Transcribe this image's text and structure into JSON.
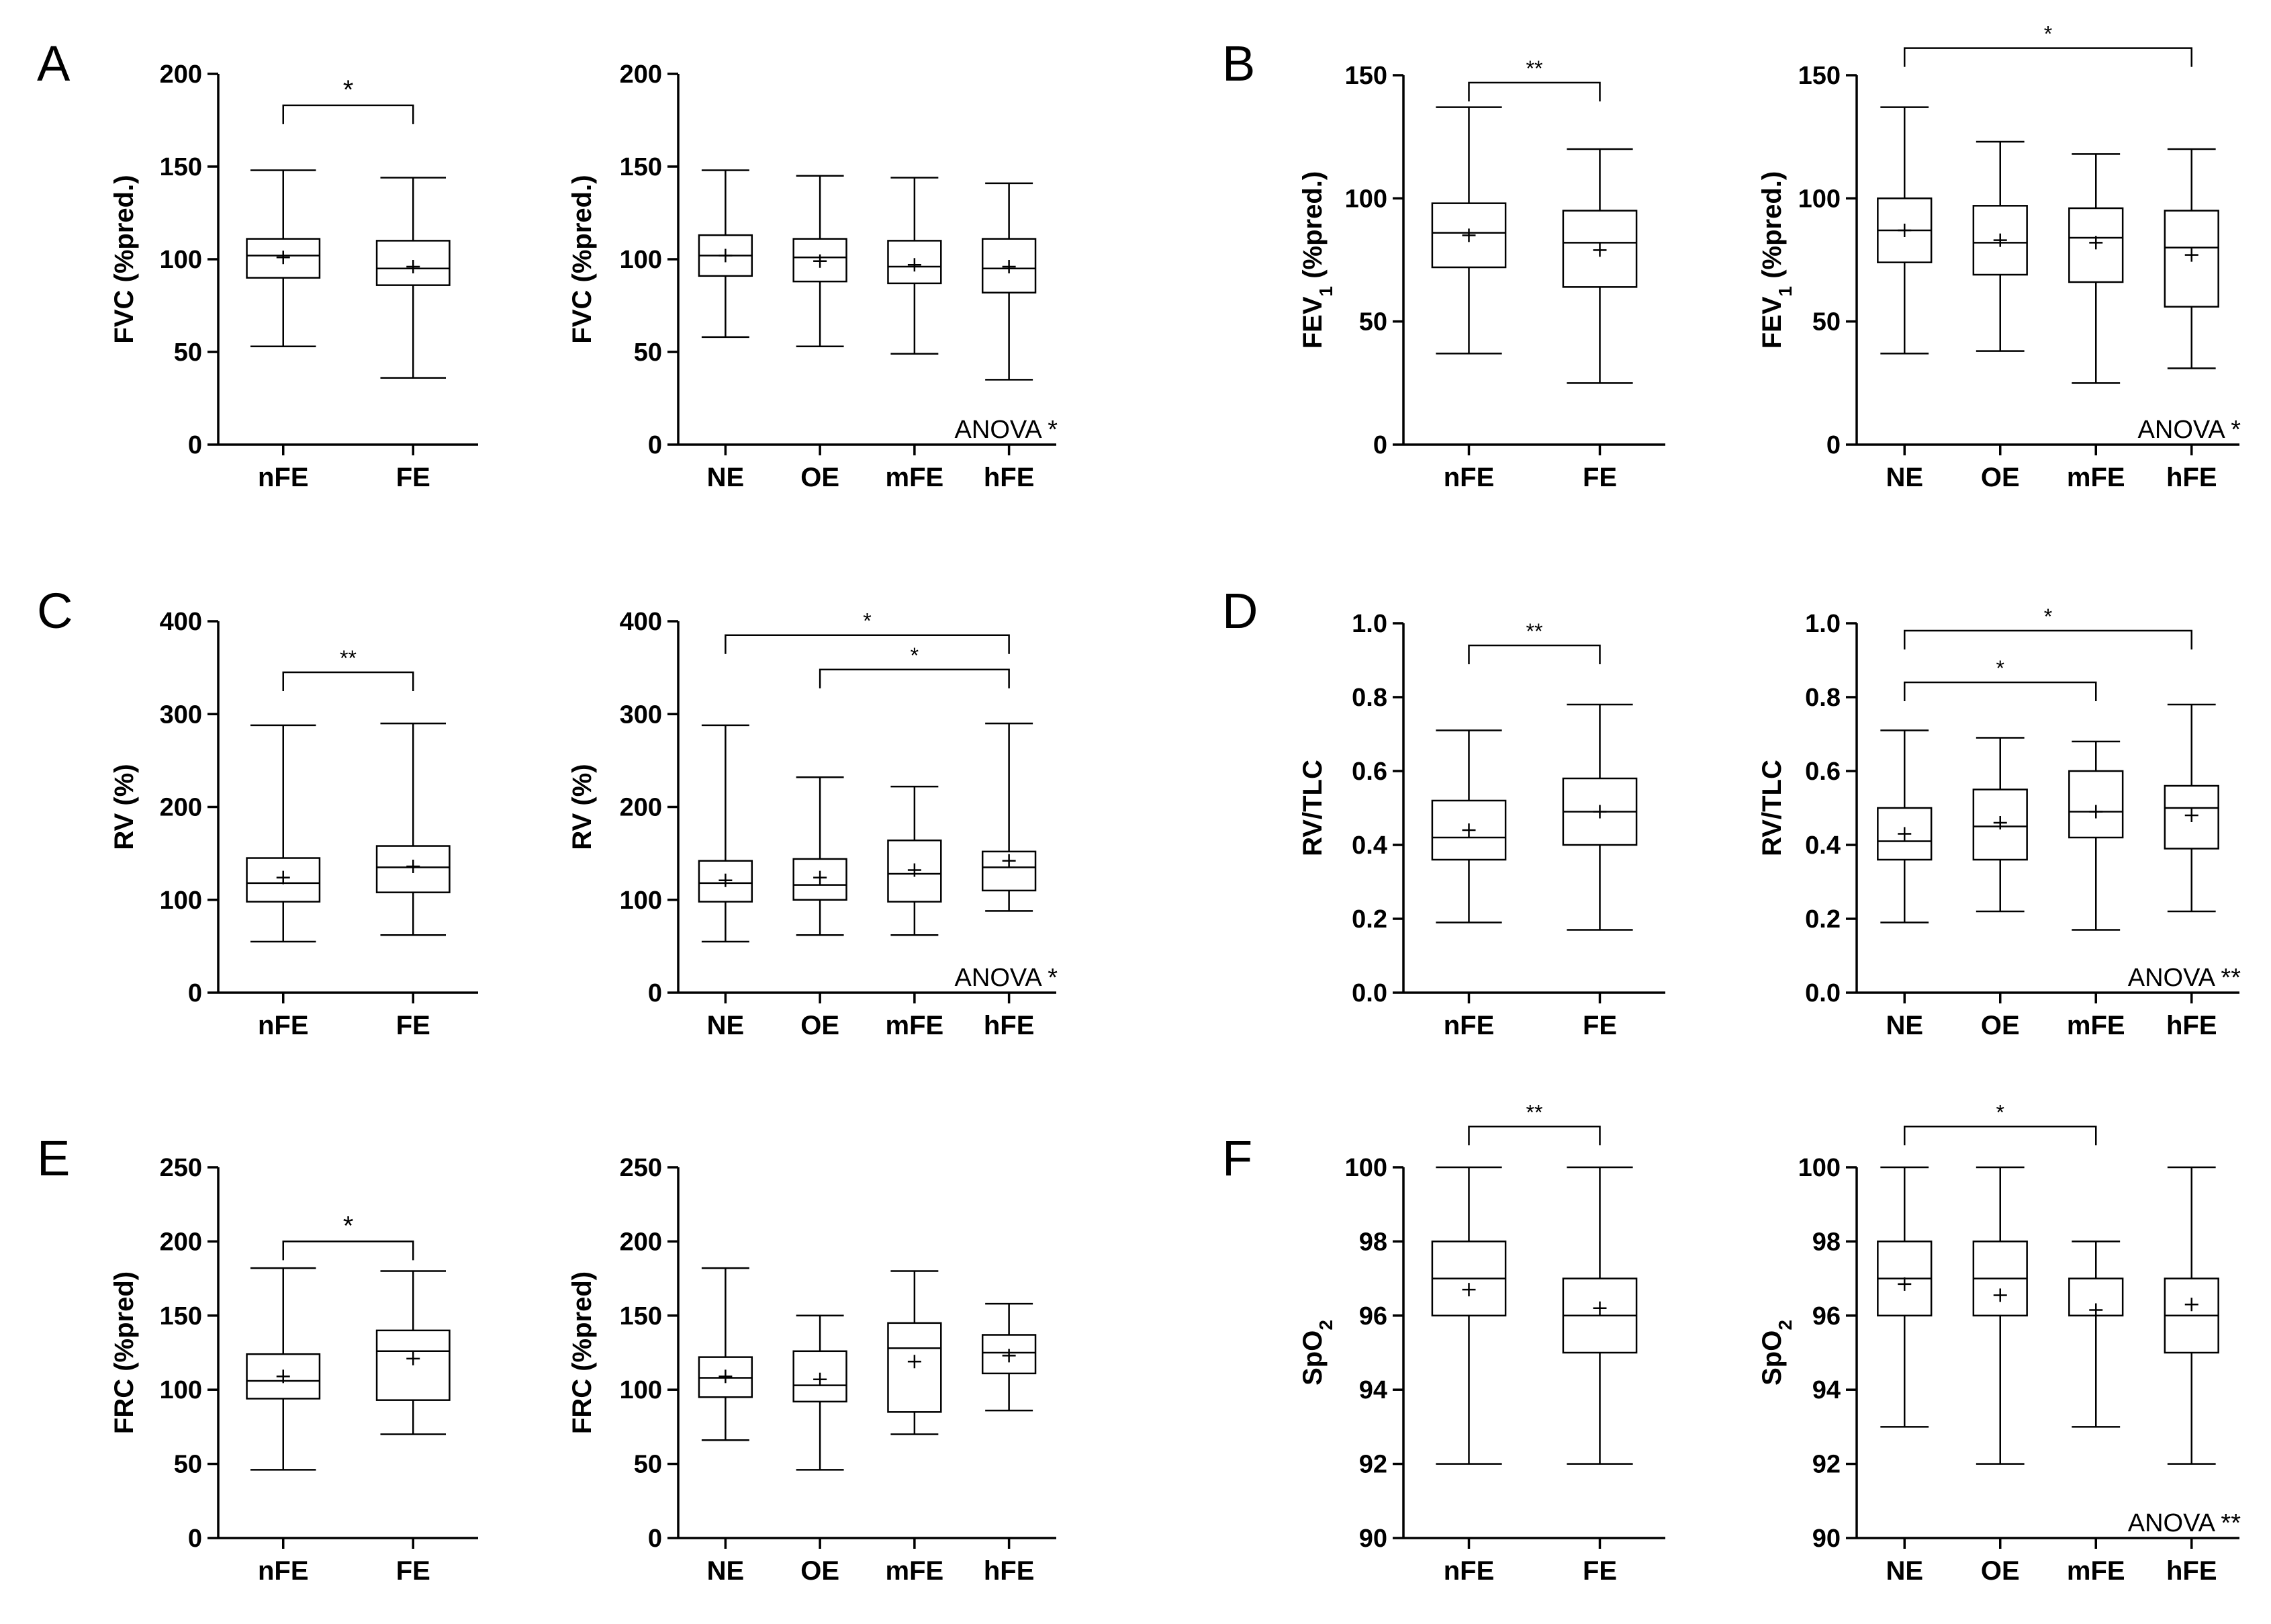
{
  "panels": [
    {
      "letter": "A",
      "id": "A"
    },
    {
      "letter": "B",
      "id": "B"
    },
    {
      "letter": "C",
      "id": "C"
    },
    {
      "letter": "D",
      "id": "D"
    },
    {
      "letter": "E",
      "id": "E"
    },
    {
      "letter": "F",
      "id": "F"
    }
  ],
  "chart_data": [
    {
      "type": "box",
      "panel": "A",
      "title": "",
      "xlabel": "",
      "ylabel": "FVC (%pred.)",
      "ylim": [
        0,
        200
      ],
      "yticks": [
        0,
        50,
        100,
        150,
        200
      ],
      "ytick_labels": [
        "0",
        "50",
        "100",
        "150",
        "200"
      ],
      "categories": [
        "nFE",
        "FE"
      ],
      "boxes": [
        {
          "min": 53,
          "q1": 90,
          "median": 102,
          "q3": 111,
          "max": 148,
          "mean": 101
        },
        {
          "min": 36,
          "q1": 86,
          "median": 95,
          "q3": 110,
          "max": 144,
          "mean": 96
        }
      ],
      "brackets": [
        {
          "from": 0,
          "to": 1,
          "y": 183,
          "label": "*"
        }
      ],
      "annotation": ""
    },
    {
      "type": "box",
      "panel": "A",
      "title": "",
      "xlabel": "",
      "ylabel": "FVC (%pred.)",
      "ylim": [
        0,
        200
      ],
      "yticks": [
        0,
        50,
        100,
        150,
        200
      ],
      "ytick_labels": [
        "0",
        "50",
        "100",
        "150",
        "200"
      ],
      "categories": [
        "NE",
        "OE",
        "mFE",
        "hFE"
      ],
      "boxes": [
        {
          "min": 58,
          "q1": 91,
          "median": 102,
          "q3": 113,
          "max": 148,
          "mean": 102
        },
        {
          "min": 53,
          "q1": 88,
          "median": 101,
          "q3": 111,
          "max": 145,
          "mean": 99
        },
        {
          "min": 49,
          "q1": 87,
          "median": 96,
          "q3": 110,
          "max": 144,
          "mean": 97
        },
        {
          "min": 35,
          "q1": 82,
          "median": 95,
          "q3": 111,
          "max": 141,
          "mean": 96
        }
      ],
      "brackets": [],
      "annotation": "ANOVA *"
    },
    {
      "type": "box",
      "panel": "B",
      "title": "",
      "xlabel": "",
      "ylabel": "FEV1 (%pred.)",
      "ylim": [
        0,
        150
      ],
      "yticks": [
        0,
        50,
        100,
        150
      ],
      "ytick_labels": [
        "0",
        "50",
        "100",
        "150"
      ],
      "categories": [
        "nFE",
        "FE"
      ],
      "boxes": [
        {
          "min": 37,
          "q1": 72,
          "median": 86,
          "q3": 98,
          "max": 137,
          "mean": 85
        },
        {
          "min": 25,
          "q1": 64,
          "median": 82,
          "q3": 95,
          "max": 120,
          "mean": 79
        }
      ],
      "brackets": [
        {
          "from": 0,
          "to": 1,
          "y": 147,
          "label": "**"
        }
      ],
      "annotation": ""
    },
    {
      "type": "box",
      "panel": "B",
      "title": "",
      "xlabel": "",
      "ylabel": "FEV1 (%pred.)",
      "ylim": [
        0,
        150
      ],
      "yticks": [
        0,
        50,
        100,
        150
      ],
      "ytick_labels": [
        "0",
        "50",
        "100",
        "150"
      ],
      "categories": [
        "NE",
        "OE",
        "mFE",
        "hFE"
      ],
      "boxes": [
        {
          "min": 37,
          "q1": 74,
          "median": 87,
          "q3": 100,
          "max": 137,
          "mean": 87
        },
        {
          "min": 38,
          "q1": 69,
          "median": 82,
          "q3": 97,
          "max": 123,
          "mean": 83
        },
        {
          "min": 25,
          "q1": 66,
          "median": 84,
          "q3": 96,
          "max": 118,
          "mean": 82
        },
        {
          "min": 31,
          "q1": 56,
          "median": 80,
          "q3": 95,
          "max": 120,
          "mean": 77
        }
      ],
      "brackets": [
        {
          "from": 0,
          "to": 3,
          "y": 161,
          "label": "*"
        }
      ],
      "annotation": "ANOVA *"
    },
    {
      "type": "box",
      "panel": "C",
      "title": "",
      "xlabel": "",
      "ylabel": "RV (%)",
      "ylim": [
        0,
        400
      ],
      "yticks": [
        0,
        100,
        200,
        300,
        400
      ],
      "ytick_labels": [
        "0",
        "100",
        "200",
        "300",
        "400"
      ],
      "categories": [
        "nFE",
        "FE"
      ],
      "boxes": [
        {
          "min": 55,
          "q1": 98,
          "median": 118,
          "q3": 145,
          "max": 288,
          "mean": 124
        },
        {
          "min": 62,
          "q1": 108,
          "median": 135,
          "q3": 158,
          "max": 290,
          "mean": 136
        }
      ],
      "brackets": [
        {
          "from": 0,
          "to": 1,
          "y": 345,
          "label": "**"
        }
      ],
      "annotation": ""
    },
    {
      "type": "box",
      "panel": "C",
      "title": "",
      "xlabel": "",
      "ylabel": "RV (%)",
      "ylim": [
        0,
        400
      ],
      "yticks": [
        0,
        100,
        200,
        300,
        400
      ],
      "ytick_labels": [
        "0",
        "100",
        "200",
        "300",
        "400"
      ],
      "categories": [
        "NE",
        "OE",
        "mFE",
        "hFE"
      ],
      "boxes": [
        {
          "min": 55,
          "q1": 98,
          "median": 118,
          "q3": 142,
          "max": 288,
          "mean": 121
        },
        {
          "min": 62,
          "q1": 100,
          "median": 116,
          "q3": 144,
          "max": 232,
          "mean": 124
        },
        {
          "min": 62,
          "q1": 98,
          "median": 128,
          "q3": 164,
          "max": 222,
          "mean": 132
        },
        {
          "min": 88,
          "q1": 110,
          "median": 135,
          "q3": 152,
          "max": 290,
          "mean": 142
        }
      ],
      "brackets": [
        {
          "from": 0,
          "to": 3,
          "y": 385,
          "label": "*"
        },
        {
          "from": 1,
          "to": 3,
          "y": 348,
          "label": "*"
        }
      ],
      "annotation": "ANOVA *"
    },
    {
      "type": "box",
      "panel": "D",
      "title": "",
      "xlabel": "",
      "ylabel": "RV/TLC",
      "ylim": [
        0,
        1
      ],
      "yticks": [
        0,
        0.2,
        0.4,
        0.6,
        0.8,
        1.0
      ],
      "ytick_labels": [
        "0.0",
        "0.2",
        "0.4",
        "0.6",
        "0.8",
        "1.0"
      ],
      "categories": [
        "nFE",
        "FE"
      ],
      "boxes": [
        {
          "min": 0.19,
          "q1": 0.36,
          "median": 0.42,
          "q3": 0.52,
          "max": 0.71,
          "mean": 0.44
        },
        {
          "min": 0.17,
          "q1": 0.4,
          "median": 0.49,
          "q3": 0.58,
          "max": 0.78,
          "mean": 0.49
        }
      ],
      "brackets": [
        {
          "from": 0,
          "to": 1,
          "y": 0.94,
          "label": "**"
        }
      ],
      "annotation": ""
    },
    {
      "type": "box",
      "panel": "D",
      "title": "",
      "xlabel": "",
      "ylabel": "RV/TLC",
      "ylim": [
        0,
        1
      ],
      "yticks": [
        0,
        0.2,
        0.4,
        0.6,
        0.8,
        1.0
      ],
      "ytick_labels": [
        "0.0",
        "0.2",
        "0.4",
        "0.6",
        "0.8",
        "1.0"
      ],
      "categories": [
        "NE",
        "OE",
        "mFE",
        "hFE"
      ],
      "boxes": [
        {
          "min": 0.19,
          "q1": 0.36,
          "median": 0.41,
          "q3": 0.5,
          "max": 0.71,
          "mean": 0.43
        },
        {
          "min": 0.22,
          "q1": 0.36,
          "median": 0.45,
          "q3": 0.55,
          "max": 0.69,
          "mean": 0.46
        },
        {
          "min": 0.17,
          "q1": 0.42,
          "median": 0.49,
          "q3": 0.6,
          "max": 0.68,
          "mean": 0.49
        },
        {
          "min": 0.22,
          "q1": 0.39,
          "median": 0.5,
          "q3": 0.56,
          "max": 0.78,
          "mean": 0.48
        }
      ],
      "brackets": [
        {
          "from": 0,
          "to": 3,
          "y": 0.98,
          "label": "*"
        },
        {
          "from": 0,
          "to": 2,
          "y": 0.84,
          "label": "*"
        }
      ],
      "annotation": "ANOVA **"
    },
    {
      "type": "box",
      "panel": "E",
      "title": "",
      "xlabel": "",
      "ylabel": "FRC (%pred)",
      "ylim": [
        0,
        250
      ],
      "yticks": [
        0,
        50,
        100,
        150,
        200,
        250
      ],
      "ytick_labels": [
        "0",
        "50",
        "100",
        "150",
        "200",
        "250"
      ],
      "categories": [
        "nFE",
        "FE"
      ],
      "boxes": [
        {
          "min": 46,
          "q1": 94,
          "median": 106,
          "q3": 124,
          "max": 182,
          "mean": 109
        },
        {
          "min": 70,
          "q1": 93,
          "median": 126,
          "q3": 140,
          "max": 180,
          "mean": 121
        }
      ],
      "brackets": [
        {
          "from": 0,
          "to": 1,
          "y": 200,
          "label": "*"
        }
      ],
      "annotation": ""
    },
    {
      "type": "box",
      "panel": "E",
      "title": "",
      "xlabel": "",
      "ylabel": "FRC (%pred)",
      "ylim": [
        0,
        250
      ],
      "yticks": [
        0,
        50,
        100,
        150,
        200,
        250
      ],
      "ytick_labels": [
        "0",
        "50",
        "100",
        "150",
        "200",
        "250"
      ],
      "categories": [
        "NE",
        "OE",
        "mFE",
        "hFE"
      ],
      "boxes": [
        {
          "min": 66,
          "q1": 95,
          "median": 108,
          "q3": 122,
          "max": 182,
          "mean": 109
        },
        {
          "min": 46,
          "q1": 92,
          "median": 103,
          "q3": 126,
          "max": 150,
          "mean": 107
        },
        {
          "min": 70,
          "q1": 85,
          "median": 128,
          "q3": 145,
          "max": 180,
          "mean": 119
        },
        {
          "min": 86,
          "q1": 111,
          "median": 125,
          "q3": 137,
          "max": 158,
          "mean": 123
        }
      ],
      "brackets": [],
      "annotation": ""
    },
    {
      "type": "box",
      "panel": "F",
      "title": "",
      "xlabel": "",
      "ylabel": "SpO2",
      "ylim": [
        90,
        100
      ],
      "yticks": [
        90,
        92,
        94,
        96,
        98,
        100
      ],
      "ytick_labels": [
        "90",
        "92",
        "94",
        "96",
        "98",
        "100"
      ],
      "categories": [
        "nFE",
        "FE"
      ],
      "boxes": [
        {
          "min": 92,
          "q1": 96,
          "median": 97,
          "q3": 98,
          "max": 100,
          "mean": 96.7
        },
        {
          "min": 92,
          "q1": 95,
          "median": 96,
          "q3": 97,
          "max": 100,
          "mean": 96.2
        }
      ],
      "brackets": [
        {
          "from": 0,
          "to": 1,
          "y": 101.1,
          "label": "**"
        }
      ],
      "annotation": ""
    },
    {
      "type": "box",
      "panel": "F",
      "title": "",
      "xlabel": "",
      "ylabel": "SpO2",
      "ylim": [
        90,
        100
      ],
      "yticks": [
        90,
        92,
        94,
        96,
        98,
        100
      ],
      "ytick_labels": [
        "90",
        "92",
        "94",
        "96",
        "98",
        "100"
      ],
      "categories": [
        "NE",
        "OE",
        "mFE",
        "hFE"
      ],
      "boxes": [
        {
          "min": 93,
          "q1": 96,
          "median": 97,
          "q3": 98,
          "max": 100,
          "mean": 96.85
        },
        {
          "min": 92,
          "q1": 96,
          "median": 97,
          "q3": 98,
          "max": 100,
          "mean": 96.55
        },
        {
          "min": 93,
          "q1": 96,
          "median": 96,
          "q3": 97,
          "max": 98,
          "mean": 96.15
        },
        {
          "min": 92,
          "q1": 95,
          "median": 96,
          "q3": 97,
          "max": 100,
          "mean": 96.3
        }
      ],
      "brackets": [
        {
          "from": 0,
          "to": 2,
          "y": 101.1,
          "label": "*"
        }
      ],
      "annotation": "ANOVA **"
    }
  ]
}
